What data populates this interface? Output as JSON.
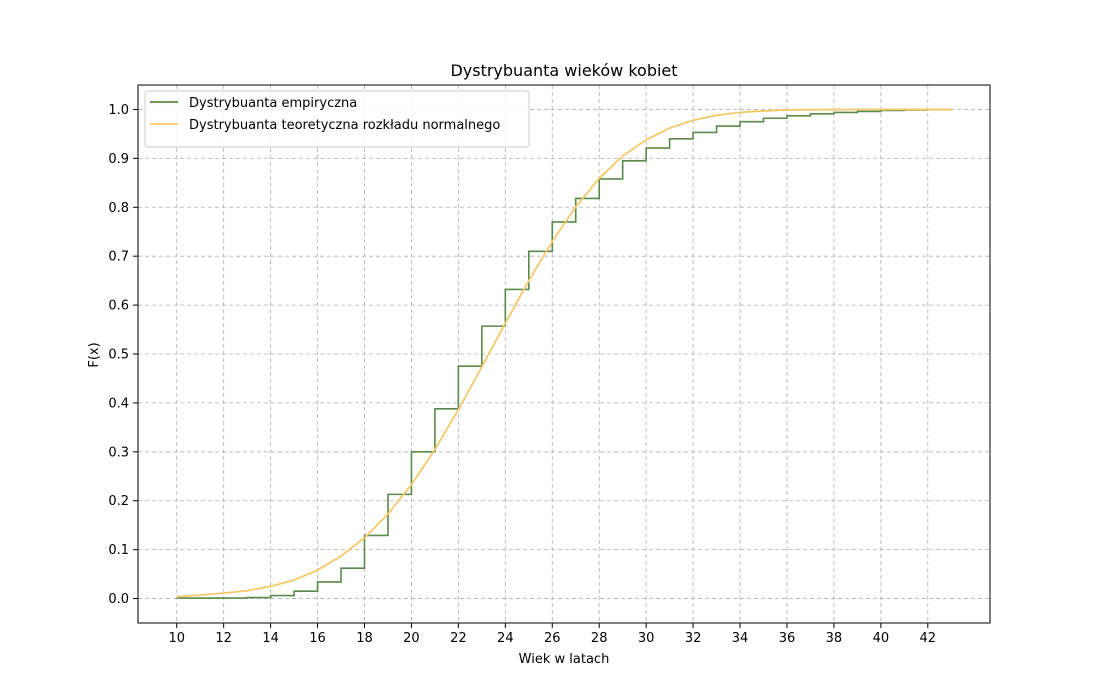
{
  "chart_data": {
    "type": "line",
    "title": "Dystrybuanta wieków kobiet",
    "xlabel": "Wiek w latach",
    "ylabel": "F(x)",
    "xlim": [
      8.35,
      44.65
    ],
    "ylim": [
      -0.05,
      1.05
    ],
    "xticks": [
      10,
      12,
      14,
      16,
      18,
      20,
      22,
      24,
      26,
      28,
      30,
      32,
      34,
      36,
      38,
      40,
      42
    ],
    "yticks": [
      0.0,
      0.1,
      0.2,
      0.3,
      0.4,
      0.5,
      0.6,
      0.7,
      0.8,
      0.9,
      1.0
    ],
    "grid": true,
    "legend_position": "top-left",
    "series": [
      {
        "name": "Dystrybuanta empiryczna",
        "style": "step-post",
        "color": "#5a8a4a",
        "x": [
          10,
          11,
          12,
          13,
          14,
          15,
          16,
          17,
          18,
          19,
          20,
          21,
          22,
          23,
          24,
          25,
          26,
          27,
          28,
          29,
          30,
          31,
          32,
          33,
          34,
          35,
          36,
          37,
          38,
          39,
          40,
          41,
          42,
          43
        ],
        "y": [
          0.001,
          0.001,
          0.001,
          0.002,
          0.006,
          0.015,
          0.034,
          0.062,
          0.129,
          0.213,
          0.3,
          0.388,
          0.475,
          0.557,
          0.632,
          0.71,
          0.77,
          0.818,
          0.858,
          0.895,
          0.921,
          0.94,
          0.953,
          0.966,
          0.975,
          0.982,
          0.987,
          0.991,
          0.994,
          0.996,
          0.998,
          0.999,
          1.0,
          1.0
        ]
      },
      {
        "name": "Dystrybuanta teoretyczna rozkładu normalnego",
        "style": "line",
        "color": "#f5c96a",
        "x": [
          10,
          11,
          12,
          13,
          14,
          15,
          16,
          17,
          18,
          19,
          20,
          21,
          22,
          23,
          24,
          25,
          26,
          27,
          28,
          29,
          30,
          31,
          32,
          33,
          34,
          35,
          36,
          37,
          38,
          39,
          40,
          41,
          42,
          43
        ],
        "y": [
          0.004,
          0.007,
          0.011,
          0.016,
          0.025,
          0.038,
          0.058,
          0.087,
          0.124,
          0.173,
          0.233,
          0.305,
          0.386,
          0.474,
          0.563,
          0.65,
          0.73,
          0.801,
          0.859,
          0.905,
          0.938,
          0.962,
          0.978,
          0.988,
          0.994,
          0.997,
          0.999,
          0.9995,
          0.9998,
          0.9999,
          1.0,
          1.0,
          1.0,
          1.0
        ]
      }
    ]
  }
}
